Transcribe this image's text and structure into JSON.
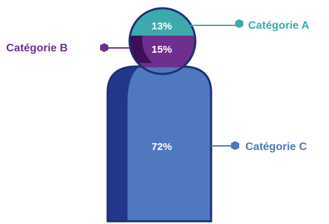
{
  "chart_data": {
    "type": "pictorial",
    "categories": [
      "Catégorie A",
      "Catégorie B",
      "Catégorie C"
    ],
    "values": [
      13,
      15,
      72
    ],
    "value_labels": [
      "13%",
      "15%",
      "72%"
    ],
    "unit": "%",
    "legend_placement": "beside markers",
    "colors": {
      "Catégorie A": "#3ea9ad",
      "Catégorie B": "#6e2f8f",
      "Catégorie C": "#4f78bf",
      "outline": "#1d2f72",
      "shadow_body": "#22368a",
      "shadow_head": "#3d1058"
    }
  }
}
